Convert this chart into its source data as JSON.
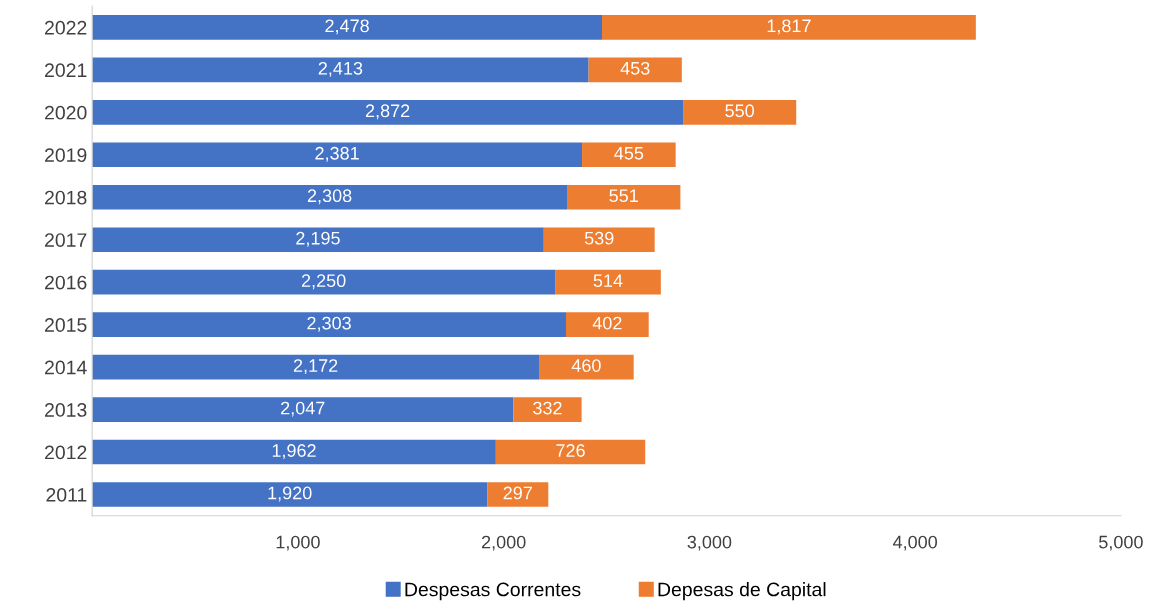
{
  "chart_data": {
    "type": "bar",
    "orientation": "horizontal",
    "stacked": true,
    "grid": false,
    "legend": "bottom",
    "categories": [
      "2022",
      "2021",
      "2020",
      "2019",
      "2018",
      "2017",
      "2016",
      "2015",
      "2014",
      "2013",
      "2012",
      "2011"
    ],
    "series": [
      {
        "name": "Despesas Correntes",
        "color": "#4472c4",
        "values": [
          2478,
          2413,
          2872,
          2381,
          2308,
          2195,
          2250,
          2303,
          2172,
          2047,
          1962,
          1920
        ],
        "value_labels": [
          "2,478",
          "2,413",
          "2,872",
          "2,381",
          "2,308",
          "2,195",
          "2,250",
          "2,303",
          "2,172",
          "2,047",
          "1,962",
          "1,920"
        ]
      },
      {
        "name": "Depesas de Capital",
        "color": "#ed7d31",
        "values": [
          1817,
          453,
          550,
          455,
          551,
          539,
          514,
          402,
          460,
          332,
          726,
          297
        ],
        "value_labels": [
          "1,817",
          "453",
          "550",
          "455",
          "551",
          "539",
          "514",
          "402",
          "460",
          "332",
          "726",
          "297"
        ]
      }
    ],
    "xlim": [
      0,
      5000
    ],
    "xticks": [
      {
        "value": 1000,
        "label": "1,000"
      },
      {
        "value": 2000,
        "label": "2,000"
      },
      {
        "value": 3000,
        "label": "3,000"
      },
      {
        "value": 4000,
        "label": "4,000"
      },
      {
        "value": 5000,
        "label": "5,000"
      }
    ]
  }
}
